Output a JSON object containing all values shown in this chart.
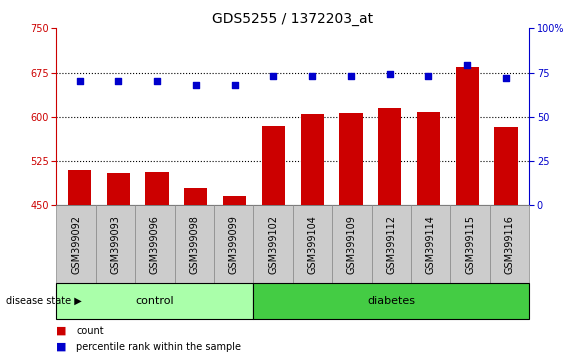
{
  "title": "GDS5255 / 1372203_at",
  "samples": [
    "GSM399092",
    "GSM399093",
    "GSM399096",
    "GSM399098",
    "GSM399099",
    "GSM399102",
    "GSM399104",
    "GSM399109",
    "GSM399112",
    "GSM399114",
    "GSM399115",
    "GSM399116"
  ],
  "counts": [
    510,
    505,
    507,
    480,
    465,
    585,
    605,
    607,
    615,
    608,
    685,
    583
  ],
  "percentile": [
    70,
    70,
    70,
    68,
    68,
    73,
    73,
    73,
    74,
    73,
    79,
    72
  ],
  "ylim_left": [
    450,
    750
  ],
  "ylim_right": [
    0,
    100
  ],
  "yticks_left": [
    450,
    525,
    600,
    675,
    750
  ],
  "yticks_right": [
    0,
    25,
    50,
    75,
    100
  ],
  "ytick_labels_right": [
    "0",
    "25",
    "50",
    "75",
    "100%"
  ],
  "control_count": 5,
  "diabetes_count": 7,
  "bar_color": "#cc0000",
  "dot_color": "#0000cc",
  "control_color": "#aaffaa",
  "diabetes_color": "#44cc44",
  "bar_edge_color": "none",
  "xlabel_color": "#cc0000",
  "ylabel_right_color": "#0000cc",
  "gridline_color": "black",
  "tick_box_color": "#cccccc",
  "tick_box_edge": "#888888",
  "legend_count_label": "count",
  "legend_pct_label": "percentile rank within the sample",
  "disease_state_label": "disease state",
  "control_label": "control",
  "diabetes_label": "diabetes",
  "title_fontsize": 10,
  "tick_fontsize": 7,
  "legend_fontsize": 7,
  "band_fontsize": 8
}
